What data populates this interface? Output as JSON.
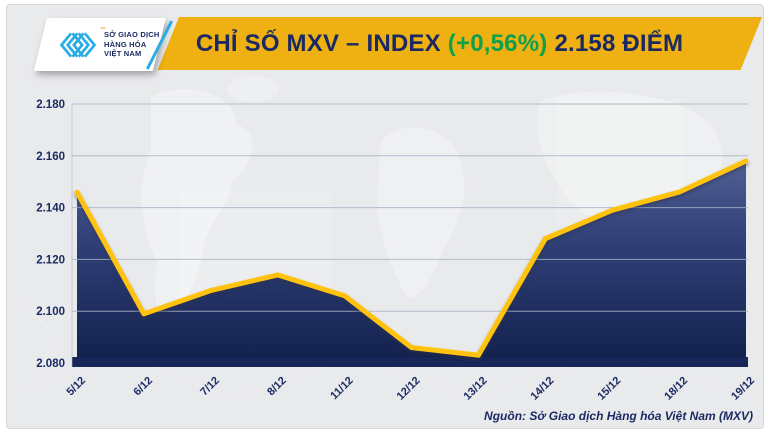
{
  "header": {
    "logo": {
      "line1": "SỞ GIAO DỊCH",
      "line2": "HÀNG HÓA",
      "line3": "VIỆT NAM",
      "trademark": "™"
    },
    "title_main": "CHỈ SỐ MXV – INDEX",
    "title_change": "(+0,56%)",
    "title_value": "2.158 ĐIỂM"
  },
  "footer": {
    "source": "Nguồn: Sở Giao dịch Hàng hóa Việt Nam (MXV)"
  },
  "colors": {
    "banner_gold": "#efb012",
    "navy_text": "#1b2a63",
    "change_green": "#0fa04c",
    "line_gold": "#ffc30f",
    "area_top": "#6878a6",
    "area_mid": "#32427a",
    "area_bottom": "#111f4b",
    "baseline_bar": "#18265a",
    "gridline": "#a9b3c6",
    "card_background": "#e9eaec",
    "logo_cyan": "#2bace2"
  },
  "chart_data": {
    "type": "area",
    "title": "CHỈ SỐ MXV – INDEX (+0,56%) 2.158 ĐIỂM",
    "xlabel": "",
    "ylabel": "",
    "categories": [
      "5/12",
      "6/12",
      "7/12",
      "8/12",
      "11/12",
      "12/12",
      "13/12",
      "14/12",
      "15/12",
      "18/12",
      "19/12"
    ],
    "values": [
      2146,
      2099,
      2108,
      2114,
      2106,
      2086,
      2083,
      2128,
      2139,
      2146,
      2158
    ],
    "last_value_label": "2.158",
    "change_percent": "+0,56%",
    "ylim": [
      2080,
      2180
    ],
    "yticks": [
      {
        "value": 2180,
        "label": "2.180"
      },
      {
        "value": 2160,
        "label": "2.160"
      },
      {
        "value": 2140,
        "label": "2.140"
      },
      {
        "value": 2120,
        "label": "2.120"
      },
      {
        "value": 2100,
        "label": "2.100"
      },
      {
        "value": 2080,
        "label": "2.080"
      }
    ],
    "grid": true,
    "legend": "none"
  }
}
